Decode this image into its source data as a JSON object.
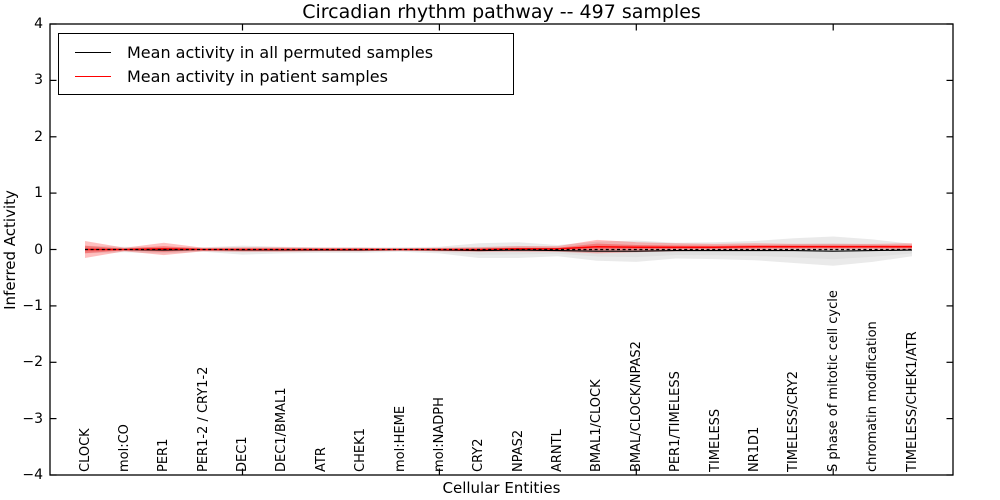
{
  "figure": {
    "title": "Circadian rhythm pathway -- 497 samples",
    "xlabel": "Cellular Entities",
    "ylabel": "Inferred Activity"
  },
  "legend": {
    "items": [
      {
        "label": "Mean activity in all permuted samples",
        "color": "#000000"
      },
      {
        "label": "Mean activity in patient samples",
        "color": "#ff0000"
      }
    ],
    "position": "upper left"
  },
  "chart_data": {
    "type": "line",
    "title": "Circadian rhythm pathway -- 497 samples",
    "xlabel": "Cellular Entities",
    "ylabel": "Inferred Activity",
    "ylim": [
      -4,
      4
    ],
    "y_tick_values": [
      4,
      3,
      2,
      1,
      0,
      -1,
      -2,
      -3,
      -4
    ],
    "y_tick_labels": [
      "4",
      "3",
      "2",
      "1",
      "0",
      "−1",
      "−2",
      "−3",
      "−4"
    ],
    "x_major_tick_indices": [
      4,
      9,
      14,
      19
    ],
    "grid": false,
    "legend_position": "upper left",
    "categories": [
      "CLOCK",
      "mol:CO",
      "PER1",
      "PER1-2 / CRY1-2",
      "DEC1",
      "DEC1/BMAL1",
      "ATR",
      "CHEK1",
      "mol:HEME",
      "mol:NADPH",
      "CRY2",
      "NPAS2",
      "ARNTL",
      "BMAL1/CLOCK",
      "BMAL/CLOCK/NPAS2",
      "PER1/TIMELESS",
      "TIMELESS",
      "NR1D1",
      "TIMELESS/CRY2",
      "S phase of mitotic cell cycle",
      "chromatin modification",
      "TIMELESS/CHEK1/ATR"
    ],
    "series": [
      {
        "name": "Mean activity in all permuted samples",
        "color": "#000000",
        "band_color": "#bbbbbb",
        "mean": [
          0.0,
          0.0,
          -0.01,
          0.0,
          -0.01,
          -0.01,
          -0.01,
          -0.01,
          0.0,
          -0.01,
          -0.02,
          -0.01,
          -0.02,
          -0.03,
          -0.03,
          -0.02,
          -0.02,
          -0.02,
          -0.02,
          -0.03,
          -0.02,
          -0.01
        ],
        "band_halfwidth": [
          0.07,
          0.05,
          0.06,
          0.04,
          0.08,
          0.06,
          0.05,
          0.05,
          0.04,
          0.06,
          0.13,
          0.14,
          0.1,
          0.17,
          0.19,
          0.14,
          0.15,
          0.17,
          0.22,
          0.26,
          0.2,
          0.11
        ]
      },
      {
        "name": "Mean activity in patient samples",
        "color": "#ff0000",
        "band_color": "#ff0000",
        "mean": [
          0.0,
          0.0,
          0.01,
          0.0,
          0.0,
          0.0,
          0.0,
          0.0,
          0.0,
          0.0,
          0.0,
          0.01,
          0.01,
          0.05,
          0.04,
          0.04,
          0.04,
          0.05,
          0.05,
          0.05,
          0.05,
          0.05
        ],
        "band_halfwidth": [
          0.15,
          0.03,
          0.11,
          0.03,
          0.04,
          0.04,
          0.03,
          0.03,
          0.02,
          0.03,
          0.04,
          0.05,
          0.05,
          0.12,
          0.09,
          0.07,
          0.06,
          0.06,
          0.05,
          0.05,
          0.05,
          0.06
        ]
      }
    ],
    "zero_line": {
      "value": 0,
      "style": "dashed",
      "color": "#000000"
    }
  }
}
